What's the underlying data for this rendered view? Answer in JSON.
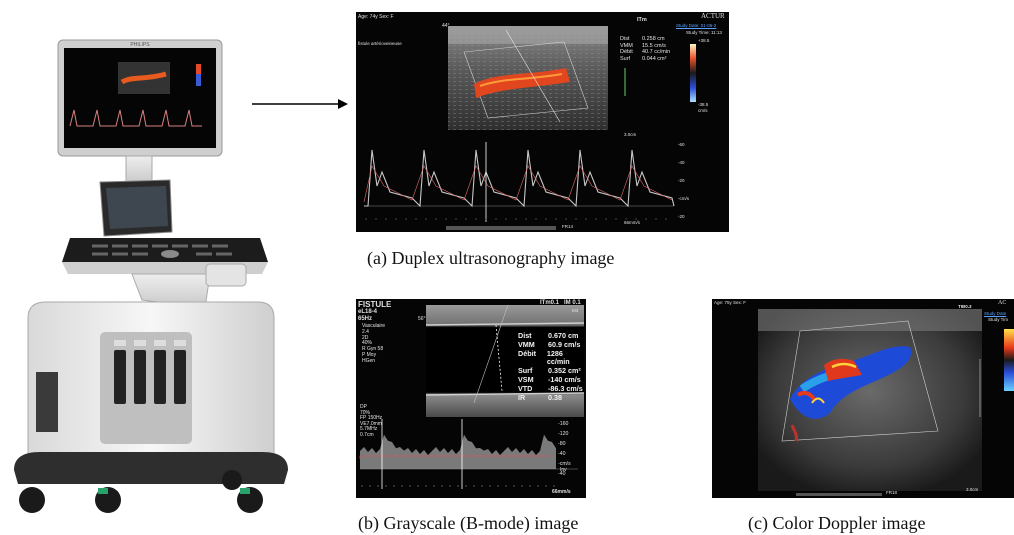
{
  "machine": {
    "brand": "PHILIPS"
  },
  "captions": {
    "a": "(a) Duplex ultrasonography image",
    "b": "(b) Grayscale (B-mode) image",
    "c": "(c) Color Doppler image"
  },
  "panel_a": {
    "top_left": "Age: 74y  Sex: F",
    "top_right": "ACTUR",
    "itm": "ITm",
    "study_date": "Study Date: 01-06-2",
    "study_time": "Study Time: 11:13",
    "angle": "44°",
    "vessel_label": "fistule artérioveineuse",
    "measurements": [
      {
        "k": "Dist",
        "v": "0.258 cm"
      },
      {
        "k": "VMM",
        "v": "15.5 cm/s"
      },
      {
        "k": "Débit",
        "v": "40.7 cc/min"
      },
      {
        "k": "Surf",
        "v": "0.044 cm²"
      }
    ],
    "scale_top": "+38.5",
    "scale_bottom": "-38.5",
    "scale_unit": "cm/s",
    "depth": "3.0cm",
    "doppler_ticks": [
      "-60",
      "-40",
      "-20",
      "-cm/s",
      "-20"
    ],
    "speed": "66mm/s",
    "footer": "FR14"
  },
  "panel_b": {
    "title": "FISTULE",
    "probe": "eL18-4",
    "freq": "65Hz",
    "header_info": [
      "Vasculaire",
      "2.4",
      "2D",
      "40%",
      "R Gyn 58",
      "P Moy",
      "HGen"
    ],
    "angle": "56°",
    "itm": "ITm0.1",
    "im": "IM 0.1",
    "m_label": "M3",
    "measurements": [
      {
        "k": "Dist",
        "v": "0.670 cm"
      },
      {
        "k": "VMM",
        "v": "60.9 cm/s"
      },
      {
        "k": "Débit",
        "v": "1286 cc/min"
      },
      {
        "k": "Surf",
        "v": "0.352 cm²"
      },
      {
        "k": "VSM",
        "v": "-140 cm/s"
      },
      {
        "k": "VTD",
        "v": "-86.3 cm/s"
      },
      {
        "k": "IR",
        "v": "0.38"
      }
    ],
    "dp_info": [
      "DP",
      "70%",
      "FP 150Hz",
      "VE7.0mm",
      "5.7MHz",
      "0.7cm"
    ],
    "scale_ticks": [
      "-160",
      "-120",
      "-80",
      "-40",
      "-cm/s",
      "-40"
    ],
    "inv": "Inv",
    "speed": "66mm/s"
  },
  "panel_c": {
    "top_left": "Age: 75y  Sex: F",
    "itm": "TIB0.3",
    "top_right": "AC",
    "study_date": "Study Date",
    "study_time": "Study Tim",
    "depth": "3.0cm",
    "footer": "FR18"
  }
}
